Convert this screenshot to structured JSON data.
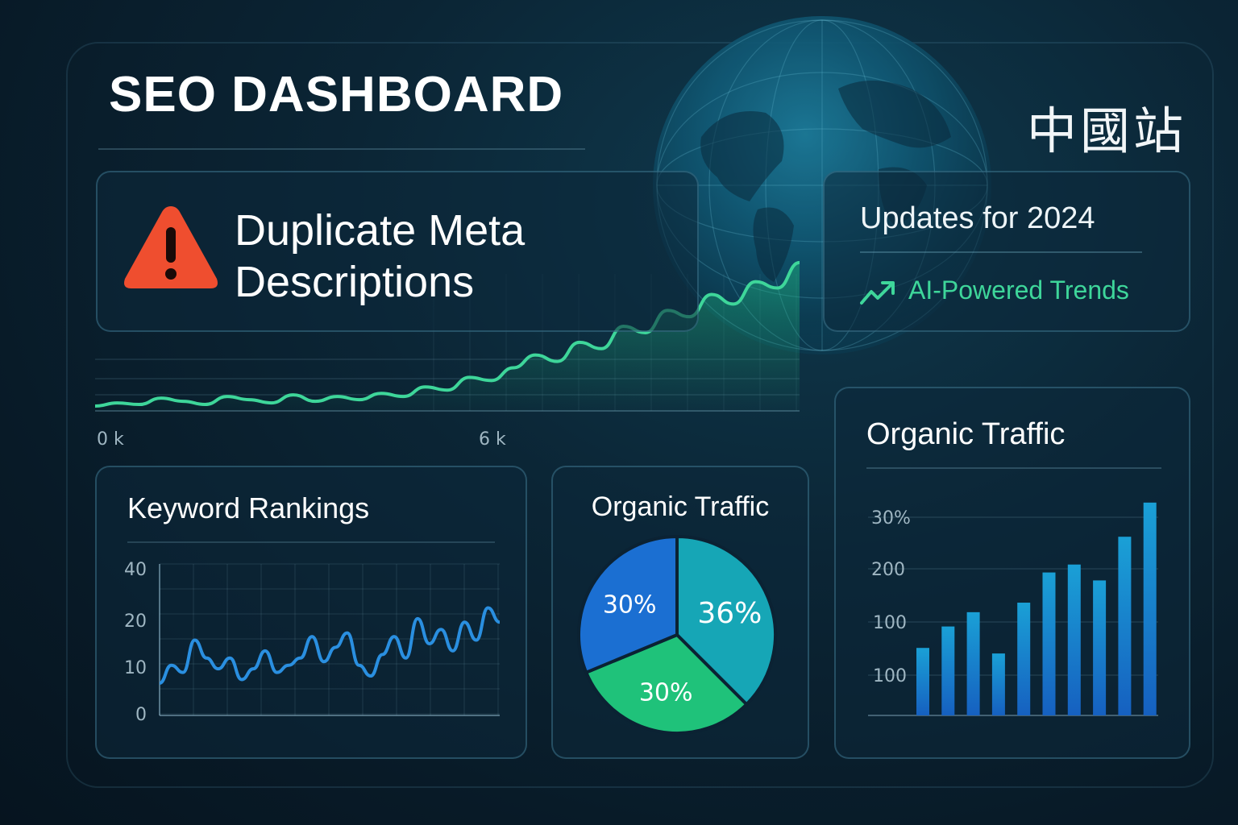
{
  "header": {
    "title": "SEO DASHBOARD",
    "site_name": "中國站"
  },
  "alert": {
    "icon": "warning-icon",
    "text": "Duplicate Meta Descriptions",
    "icon_color": "#ef4e2f"
  },
  "updates": {
    "title": "Updates for 2024",
    "trend_icon": "trending-up-icon",
    "trend_label": "AI-Powered Trends",
    "accent_color": "#3ed69a"
  },
  "chart_data": [
    {
      "type": "area",
      "x_tick_labels": [
        "0 k",
        "6 k"
      ],
      "values": [
        2,
        4,
        3,
        7,
        5,
        3,
        8,
        6,
        4,
        9,
        5,
        8,
        6,
        10,
        8,
        14,
        12,
        20,
        18,
        26,
        34,
        30,
        42,
        38,
        52,
        48,
        62,
        58,
        72,
        66,
        80,
        76,
        92
      ],
      "color": "#3ed69a"
    },
    {
      "type": "line",
      "title": "Keyword Rankings",
      "y_tick_labels": [
        "40",
        "20",
        "10",
        "0"
      ],
      "values": [
        9,
        14,
        12,
        21,
        16,
        13,
        16,
        10,
        13,
        18,
        12,
        14,
        16,
        22,
        15,
        19,
        23,
        14,
        11,
        17,
        22,
        16,
        27,
        20,
        24,
        18,
        26,
        21,
        30,
        26
      ],
      "color": "#2a8fe0"
    },
    {
      "type": "pie",
      "title": "Organic Traffic",
      "slices": [
        {
          "label": "36%",
          "value": 36,
          "color": "#16a6b6"
        },
        {
          "label": "30%",
          "value": 30,
          "color": "#1fc27a"
        },
        {
          "label": "30%",
          "value": 30,
          "color": "#1b6fd2"
        }
      ]
    },
    {
      "type": "bar",
      "title": "Organic Traffic",
      "y_tick_labels": [
        "30%",
        "200",
        "100",
        "100"
      ],
      "values": [
        85,
        112,
        130,
        78,
        142,
        180,
        190,
        170,
        225,
        268
      ],
      "color": "#1a8fd0"
    }
  ]
}
